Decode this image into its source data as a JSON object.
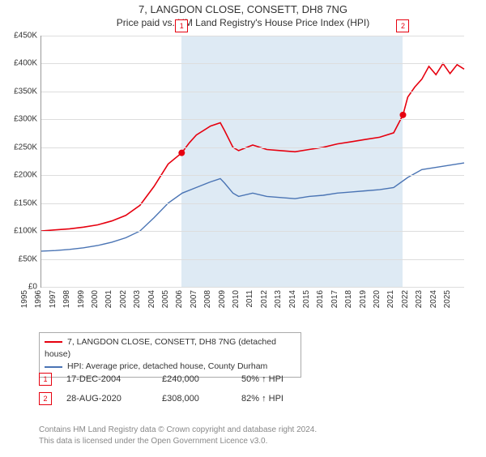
{
  "title": "7, LANGDON CLOSE, CONSETT, DH8 7NG",
  "subtitle": "Price paid vs. HM Land Registry's House Price Index (HPI)",
  "chart": {
    "type": "line",
    "background_color": "#ffffff",
    "grid_color": "#dddddd",
    "border_color": "#999999",
    "axis_fontsize": 10,
    "title_fontsize": 13,
    "y": {
      "min": 0,
      "max": 450000,
      "step": 50000,
      "prefix": "£",
      "suffix": "K",
      "divide": 1000
    },
    "x": {
      "min": 1995,
      "max": 2025,
      "step": 1
    },
    "band": {
      "start": 2004.96,
      "end": 2020.66,
      "color": "#deeaf4"
    },
    "series": [
      {
        "name": "7, LANGDON CLOSE, CONSETT, DH8 7NG (detached house)",
        "color": "#e6000f",
        "width": 1.6,
        "points": [
          [
            1995,
            100000
          ],
          [
            1996,
            102000
          ],
          [
            1997,
            104000
          ],
          [
            1998,
            107000
          ],
          [
            1999,
            111000
          ],
          [
            2000,
            118000
          ],
          [
            2001,
            128000
          ],
          [
            2002,
            146000
          ],
          [
            2003,
            180000
          ],
          [
            2004,
            220000
          ],
          [
            2004.96,
            240000
          ],
          [
            2005.5,
            258000
          ],
          [
            2006,
            272000
          ],
          [
            2007,
            288000
          ],
          [
            2007.7,
            294000
          ],
          [
            2008,
            280000
          ],
          [
            2008.6,
            250000
          ],
          [
            2009,
            244000
          ],
          [
            2010,
            254000
          ],
          [
            2011,
            246000
          ],
          [
            2012,
            244000
          ],
          [
            2013,
            242000
          ],
          [
            2014,
            246000
          ],
          [
            2015,
            250000
          ],
          [
            2016,
            256000
          ],
          [
            2017,
            260000
          ],
          [
            2018,
            264000
          ],
          [
            2019,
            268000
          ],
          [
            2020,
            276000
          ],
          [
            2020.66,
            308000
          ],
          [
            2021,
            340000
          ],
          [
            2021.5,
            358000
          ],
          [
            2022,
            372000
          ],
          [
            2022.5,
            395000
          ],
          [
            2023,
            380000
          ],
          [
            2023.5,
            400000
          ],
          [
            2024,
            382000
          ],
          [
            2024.5,
            398000
          ],
          [
            2025,
            390000
          ]
        ]
      },
      {
        "name": "HPI: Average price, detached house, County Durham",
        "color": "#4a74b4",
        "width": 1.4,
        "points": [
          [
            1995,
            64000
          ],
          [
            1996,
            65000
          ],
          [
            1997,
            67000
          ],
          [
            1998,
            70000
          ],
          [
            1999,
            74000
          ],
          [
            2000,
            80000
          ],
          [
            2001,
            88000
          ],
          [
            2002,
            100000
          ],
          [
            2003,
            124000
          ],
          [
            2004,
            150000
          ],
          [
            2005,
            168000
          ],
          [
            2006,
            178000
          ],
          [
            2007,
            188000
          ],
          [
            2007.7,
            194000
          ],
          [
            2008,
            186000
          ],
          [
            2008.6,
            168000
          ],
          [
            2009,
            162000
          ],
          [
            2010,
            168000
          ],
          [
            2011,
            162000
          ],
          [
            2012,
            160000
          ],
          [
            2013,
            158000
          ],
          [
            2014,
            162000
          ],
          [
            2015,
            164000
          ],
          [
            2016,
            168000
          ],
          [
            2017,
            170000
          ],
          [
            2018,
            172000
          ],
          [
            2019,
            174000
          ],
          [
            2020,
            178000
          ],
          [
            2021,
            196000
          ],
          [
            2022,
            210000
          ],
          [
            2023,
            214000
          ],
          [
            2024,
            218000
          ],
          [
            2025,
            222000
          ]
        ]
      }
    ],
    "sale_markers": [
      {
        "n": "1",
        "x": 2004.96,
        "y": 240000,
        "color": "#e6000f"
      },
      {
        "n": "2",
        "x": 2020.66,
        "y": 308000,
        "color": "#e6000f"
      }
    ]
  },
  "legend": {
    "items": [
      {
        "color": "#e6000f",
        "label": "7, LANGDON CLOSE, CONSETT, DH8 7NG (detached house)"
      },
      {
        "color": "#4a74b4",
        "label": "HPI: Average price, detached house, County Durham"
      }
    ]
  },
  "sales": [
    {
      "n": "1",
      "date": "17-DEC-2004",
      "price": "£240,000",
      "pct": "50% ↑ HPI",
      "color": "#e6000f"
    },
    {
      "n": "2",
      "date": "28-AUG-2020",
      "price": "£308,000",
      "pct": "82% ↑ HPI",
      "color": "#e6000f"
    }
  ],
  "footer": {
    "line1": "Contains HM Land Registry data © Crown copyright and database right 2024.",
    "line2": "This data is licensed under the Open Government Licence v3.0."
  }
}
